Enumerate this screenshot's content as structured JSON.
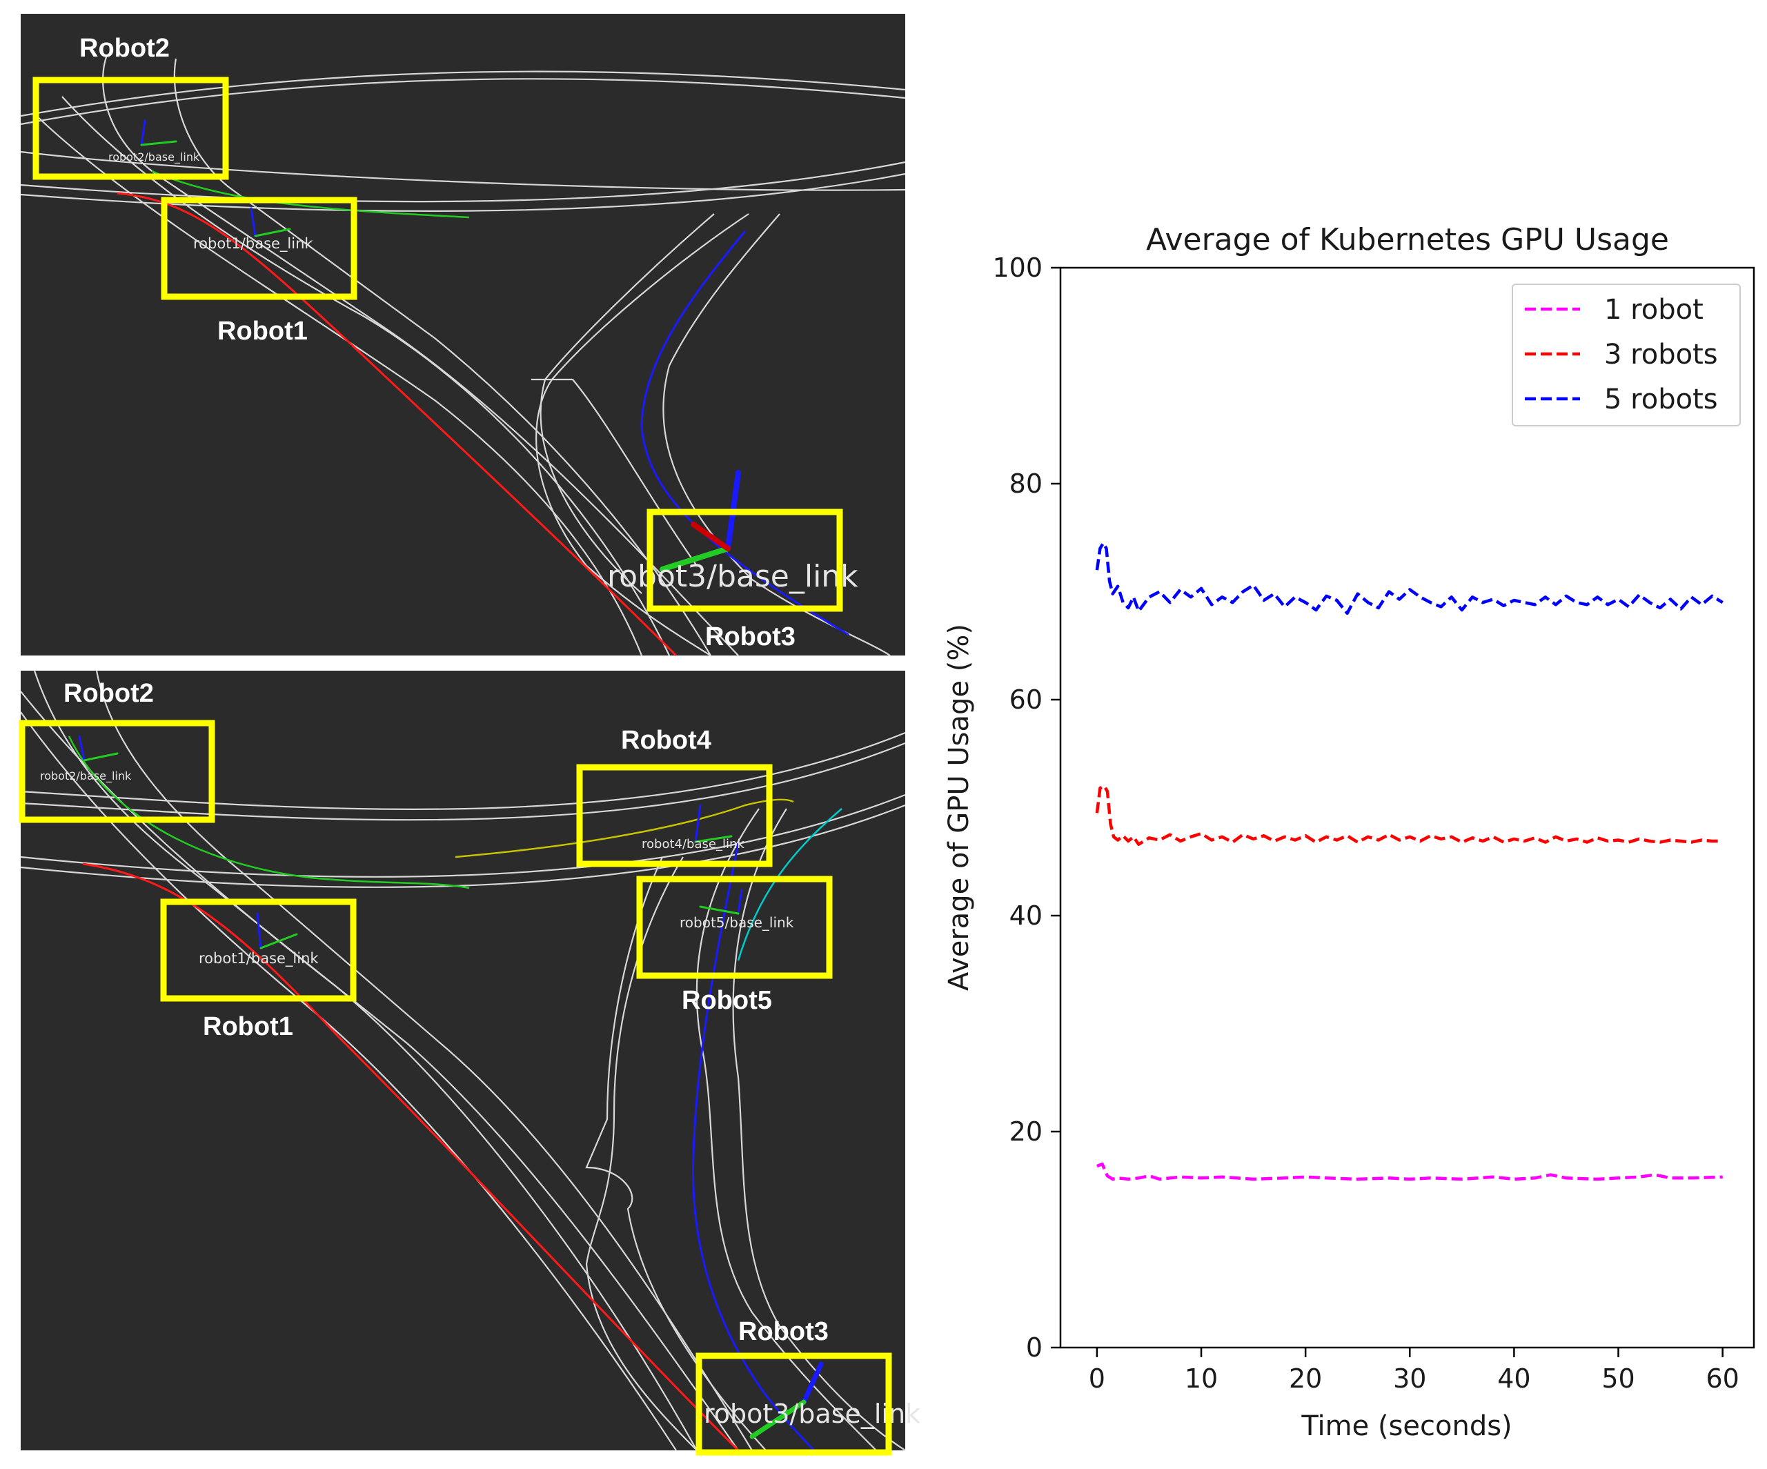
{
  "scene_top": {
    "labels": {
      "robot1": "Robot1",
      "robot2": "Robot2",
      "robot3": "Robot3"
    },
    "frames": {
      "robot1": "robot1/base_link",
      "robot2": "robot2/base_link",
      "robot3": "robot3/base_link"
    }
  },
  "scene_bottom": {
    "labels": {
      "robot1": "Robot1",
      "robot2": "Robot2",
      "robot3": "Robot3",
      "robot4": "Robot4",
      "robot5": "Robot5"
    },
    "frames": {
      "robot1": "robot1/base_link",
      "robot2": "robot2/base_link",
      "robot3": "robot3/base_link",
      "robot4": "robot4/base_link",
      "robot5": "robot5/base_link"
    }
  },
  "colors": {
    "panel_bg": "#2b2b2b",
    "highlight_box": "#ffff00",
    "road": "#d8d8d8",
    "path_red": "#ff1a1a",
    "path_green": "#22cc22",
    "path_blue": "#1a1aff",
    "path_yellow": "#c8c400",
    "path_cyan": "#00cccc"
  },
  "chart_data": {
    "type": "line",
    "title": "Average of Kubernetes GPU Usage",
    "xlabel": "Time (seconds)",
    "ylabel": "Average of GPU Usage (%)",
    "xlim": [
      -3.5,
      63
    ],
    "ylim": [
      0,
      100
    ],
    "xticks": [
      0,
      10,
      20,
      30,
      40,
      50,
      60
    ],
    "yticks": [
      0,
      20,
      40,
      60,
      80,
      100
    ],
    "grid": false,
    "legend_position": "top-right",
    "line_style": "dashed",
    "series": [
      {
        "name": "1 robot",
        "color": "#ff00ff",
        "x": [
          0,
          0.5,
          1,
          1.5,
          2,
          3,
          4,
          5,
          6,
          8,
          10,
          12,
          15,
          18,
          20,
          22,
          25,
          28,
          30,
          32,
          35,
          38,
          40,
          42,
          43.5,
          45,
          48,
          50,
          52,
          53.5,
          55,
          57,
          60
        ],
        "values": [
          16.8,
          17.0,
          15.9,
          15.6,
          15.7,
          15.6,
          15.7,
          15.9,
          15.6,
          15.8,
          15.7,
          15.8,
          15.6,
          15.7,
          15.8,
          15.7,
          15.6,
          15.7,
          15.6,
          15.7,
          15.6,
          15.8,
          15.6,
          15.7,
          16.0,
          15.7,
          15.6,
          15.7,
          15.8,
          16.0,
          15.7,
          15.7,
          15.8
        ]
      },
      {
        "name": "3 robots",
        "color": "#ff0000",
        "x": [
          0,
          0.3,
          0.7,
          1,
          1.3,
          1.6,
          2,
          2.5,
          3,
          3.5,
          4,
          5,
          6,
          7,
          8,
          9,
          10,
          11,
          12,
          13,
          14,
          15,
          16,
          17,
          18,
          19,
          20,
          21,
          22,
          23,
          24,
          25,
          26,
          27,
          28,
          29,
          30,
          31,
          32,
          33,
          34,
          35,
          36,
          37,
          38,
          39,
          40,
          41,
          42,
          43,
          44,
          45,
          46,
          47,
          48,
          49,
          50,
          51,
          52,
          53,
          54,
          55,
          56,
          57,
          58,
          59,
          60
        ],
        "values": [
          49.5,
          51.8,
          52.0,
          51.5,
          48.5,
          47.3,
          47.0,
          47.4,
          46.9,
          47.3,
          46.6,
          47.2,
          47.0,
          47.5,
          46.9,
          47.3,
          47.6,
          47.0,
          47.3,
          46.8,
          47.5,
          47.1,
          47.4,
          46.9,
          47.3,
          47.0,
          47.4,
          46.8,
          47.3,
          47.0,
          47.4,
          46.8,
          47.3,
          47.0,
          47.5,
          47.0,
          47.3,
          46.9,
          47.4,
          47.1,
          47.3,
          46.8,
          47.2,
          46.9,
          47.3,
          46.8,
          47.1,
          46.9,
          47.2,
          46.8,
          47.3,
          46.9,
          47.1,
          46.8,
          47.2,
          46.9,
          47.0,
          46.8,
          47.1,
          46.9,
          46.8,
          47.0,
          46.9,
          46.8,
          47.0,
          46.9,
          46.9
        ]
      },
      {
        "name": "5 robots",
        "color": "#0000ff",
        "x": [
          0,
          0.3,
          0.6,
          0.9,
          1.2,
          1.5,
          2,
          2.5,
          3,
          3.5,
          4,
          5,
          6,
          7,
          8,
          9,
          10,
          11,
          12,
          13,
          14,
          15,
          16,
          17,
          18,
          19,
          20,
          21,
          22,
          23,
          24,
          25,
          26,
          27,
          28,
          29,
          30,
          31,
          32,
          33,
          34,
          35,
          36,
          37,
          38,
          39,
          40,
          41,
          42,
          43,
          44,
          45,
          46,
          47,
          48,
          49,
          50,
          51,
          52,
          53,
          54,
          55,
          56,
          57,
          58,
          59,
          60
        ],
        "values": [
          72.0,
          74.0,
          74.5,
          74.0,
          71.0,
          69.8,
          70.5,
          69.0,
          68.5,
          69.5,
          68.2,
          69.5,
          70.0,
          69.0,
          70.2,
          69.5,
          70.3,
          68.8,
          69.5,
          69.0,
          70.0,
          70.6,
          69.2,
          69.8,
          68.6,
          69.5,
          69.0,
          68.3,
          69.6,
          69.2,
          68.0,
          69.8,
          69.0,
          68.5,
          70.0,
          69.3,
          70.2,
          69.5,
          69.0,
          68.6,
          69.5,
          68.3,
          69.5,
          69.0,
          69.3,
          68.7,
          69.2,
          69.0,
          68.8,
          69.5,
          68.8,
          69.6,
          69.0,
          68.8,
          69.5,
          68.8,
          69.3,
          68.6,
          69.7,
          69.0,
          68.5,
          69.3,
          68.4,
          69.5,
          68.8,
          69.6,
          69.0
        ]
      }
    ]
  }
}
